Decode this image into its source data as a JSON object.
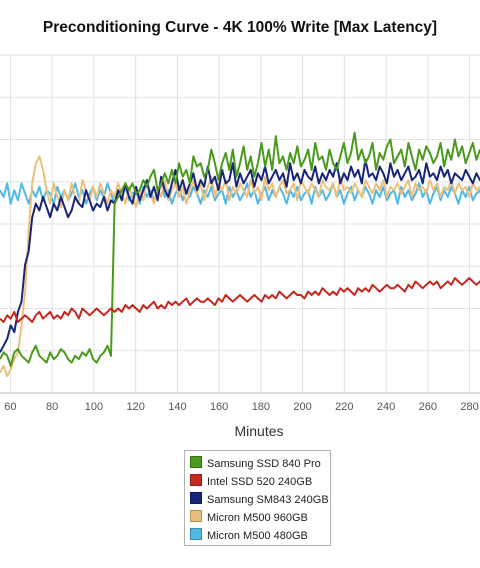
{
  "chart_data": {
    "type": "line",
    "title": "Preconditioning Curve - 4K 100% Write [Max Latency]",
    "xlabel": "Minutes",
    "ylabel": "",
    "xlim": [
      55,
      285
    ],
    "ylim": [
      0,
      100
    ],
    "x_ticks": [
      60,
      80,
      100,
      120,
      140,
      160,
      180,
      200,
      220,
      240,
      260,
      280
    ],
    "grid": true,
    "legend_position": "bottom",
    "series": [
      {
        "name": "Samsung SSD 840 Pro",
        "color": "#4a9a1c",
        "values": [
          10,
          12,
          11,
          8,
          12,
          13,
          11,
          10,
          9,
          12,
          14,
          11,
          10,
          9,
          12,
          10,
          11,
          13,
          12,
          10,
          9,
          11,
          10,
          12,
          11,
          13,
          10,
          9,
          11,
          12,
          14,
          11,
          56,
          58,
          60,
          62,
          60,
          62,
          59,
          60,
          63,
          61,
          64,
          66,
          60,
          62,
          65,
          62,
          66,
          62,
          68,
          64,
          66,
          62,
          70,
          67,
          68,
          64,
          66,
          72,
          68,
          63,
          68,
          71,
          66,
          72,
          64,
          68,
          73,
          66,
          70,
          64,
          68,
          74,
          67,
          72,
          66,
          76,
          68,
          70,
          66,
          71,
          68,
          73,
          67,
          69,
          72,
          66,
          74,
          69,
          70,
          66,
          72,
          68,
          66,
          70,
          74,
          68,
          71,
          77,
          69,
          72,
          68,
          70,
          74,
          66,
          71,
          69,
          73,
          75,
          68,
          70,
          72,
          67,
          74,
          70,
          66,
          72,
          69,
          73,
          71,
          68,
          70,
          74,
          67,
          72,
          69,
          75,
          70,
          73,
          68,
          71,
          74,
          69,
          72
        ]
      },
      {
        "name": "Intel SSD 520 240GB",
        "color": "#c4281f",
        "values": [
          22,
          21,
          23,
          22,
          24,
          21,
          22,
          23,
          22,
          21,
          23,
          24,
          22,
          23,
          24,
          22,
          23,
          22,
          24,
          23,
          25,
          24,
          22,
          25,
          24,
          23,
          24,
          25,
          24,
          23,
          24,
          25,
          24,
          25,
          24,
          26,
          25,
          26,
          25,
          24,
          26,
          25,
          26,
          27,
          25,
          26,
          25,
          27,
          26,
          27,
          26,
          27,
          28,
          26,
          27,
          28,
          27,
          27,
          28,
          27,
          26,
          28,
          27,
          29,
          28,
          27,
          28,
          29,
          28,
          27,
          28,
          29,
          28,
          27,
          29,
          28,
          29,
          28,
          30,
          29,
          28,
          29,
          30,
          29,
          29,
          28,
          30,
          29,
          30,
          29,
          31,
          30,
          29,
          30,
          29,
          31,
          30,
          31,
          30,
          29,
          31,
          30,
          31,
          30,
          32,
          31,
          30,
          31,
          32,
          31,
          31,
          32,
          31,
          30,
          32,
          31,
          33,
          32,
          31,
          32,
          33,
          32,
          33,
          31,
          32,
          33,
          32,
          34,
          33,
          32,
          33,
          34,
          33,
          32,
          33,
          34,
          33
        ]
      },
      {
        "name": "Samsung SM843 240GB",
        "color": "#16247a",
        "values": [
          12,
          14,
          16,
          20,
          18,
          24,
          27,
          38,
          42,
          52,
          56,
          54,
          58,
          55,
          52,
          56,
          54,
          58,
          55,
          52,
          54,
          58,
          56,
          55,
          60,
          57,
          54,
          56,
          55,
          58,
          54,
          57,
          56,
          60,
          57,
          62,
          58,
          56,
          61,
          57,
          60,
          63,
          58,
          61,
          57,
          64,
          60,
          58,
          62,
          66,
          60,
          63,
          59,
          62,
          65,
          60,
          63,
          61,
          67,
          62,
          64,
          60,
          66,
          62,
          63,
          68,
          61,
          65,
          62,
          64,
          66,
          61,
          65,
          63,
          67,
          62,
          64,
          66,
          63,
          65,
          61,
          68,
          63,
          65,
          62,
          66,
          64,
          63,
          67,
          62,
          65,
          63,
          66,
          64,
          68,
          62,
          65,
          63,
          67,
          64,
          66,
          62,
          69,
          64,
          65,
          63,
          67,
          65,
          62,
          68,
          64,
          66,
          63,
          65,
          67,
          63,
          64,
          66,
          62,
          68,
          64,
          65,
          63,
          67,
          64,
          66,
          62,
          65,
          64,
          63,
          66,
          64,
          62,
          65,
          63,
          64,
          65,
          62
        ]
      },
      {
        "name": "Micron M500 960GB",
        "color": "#ecc07c",
        "values": [
          6,
          8,
          5,
          7,
          10,
          12,
          20,
          30,
          48,
          62,
          68,
          70,
          66,
          60,
          56,
          62,
          58,
          55,
          60,
          57,
          62,
          58,
          56,
          63,
          60,
          57,
          61,
          58,
          62,
          59,
          56,
          60,
          58,
          62,
          59,
          56,
          61,
          58,
          55,
          60,
          57,
          62,
          59,
          56,
          61,
          58,
          63,
          57,
          60,
          62,
          58,
          61,
          56,
          60,
          63,
          59,
          62,
          57,
          61,
          64,
          58,
          62,
          60,
          63,
          57,
          61,
          59,
          62,
          60,
          58,
          63,
          59,
          61,
          57,
          64,
          60,
          62,
          58,
          61,
          63,
          59,
          60,
          62,
          57,
          63,
          61,
          59,
          62,
          60,
          58,
          63,
          61,
          60,
          62,
          58,
          64,
          60,
          61,
          59,
          62,
          60,
          58,
          63,
          61,
          59,
          62,
          60,
          63,
          58,
          61,
          60,
          62,
          59,
          61,
          63,
          58,
          62,
          60,
          61,
          59,
          63,
          60,
          62,
          58,
          61,
          60,
          63,
          59,
          62,
          60,
          61,
          58,
          62,
          60,
          61,
          59,
          62
        ]
      },
      {
        "name": "Micron M500 480GB",
        "color": "#4fb8e6",
        "values": [
          60,
          58,
          62,
          56,
          60,
          57,
          62,
          59,
          56,
          60,
          58,
          61,
          57,
          60,
          59,
          56,
          61,
          58,
          60,
          57,
          59,
          62,
          58,
          60,
          56,
          59,
          61,
          57,
          60,
          58,
          62,
          59,
          56,
          60,
          58,
          61,
          57,
          59,
          60,
          56,
          61,
          58,
          60,
          57,
          59,
          62,
          58,
          60,
          56,
          59,
          61,
          57,
          60,
          58,
          61,
          59,
          56,
          60,
          58,
          61,
          57,
          59,
          60,
          56,
          61,
          58,
          60,
          57,
          59,
          62,
          58,
          60,
          56,
          59,
          61,
          57,
          60,
          58,
          61,
          59,
          56,
          60,
          58,
          61,
          57,
          59,
          60,
          56,
          61,
          58,
          60,
          57,
          59,
          62,
          58,
          60,
          56,
          59,
          61,
          57,
          60,
          58,
          61,
          59,
          56,
          60,
          58,
          61,
          57,
          59,
          60,
          56,
          61,
          58,
          60,
          57,
          59,
          62,
          58,
          60,
          56,
          59,
          61,
          57,
          60,
          58,
          61,
          59,
          56,
          60,
          58,
          61,
          57,
          59,
          60,
          56,
          61
        ]
      }
    ]
  }
}
